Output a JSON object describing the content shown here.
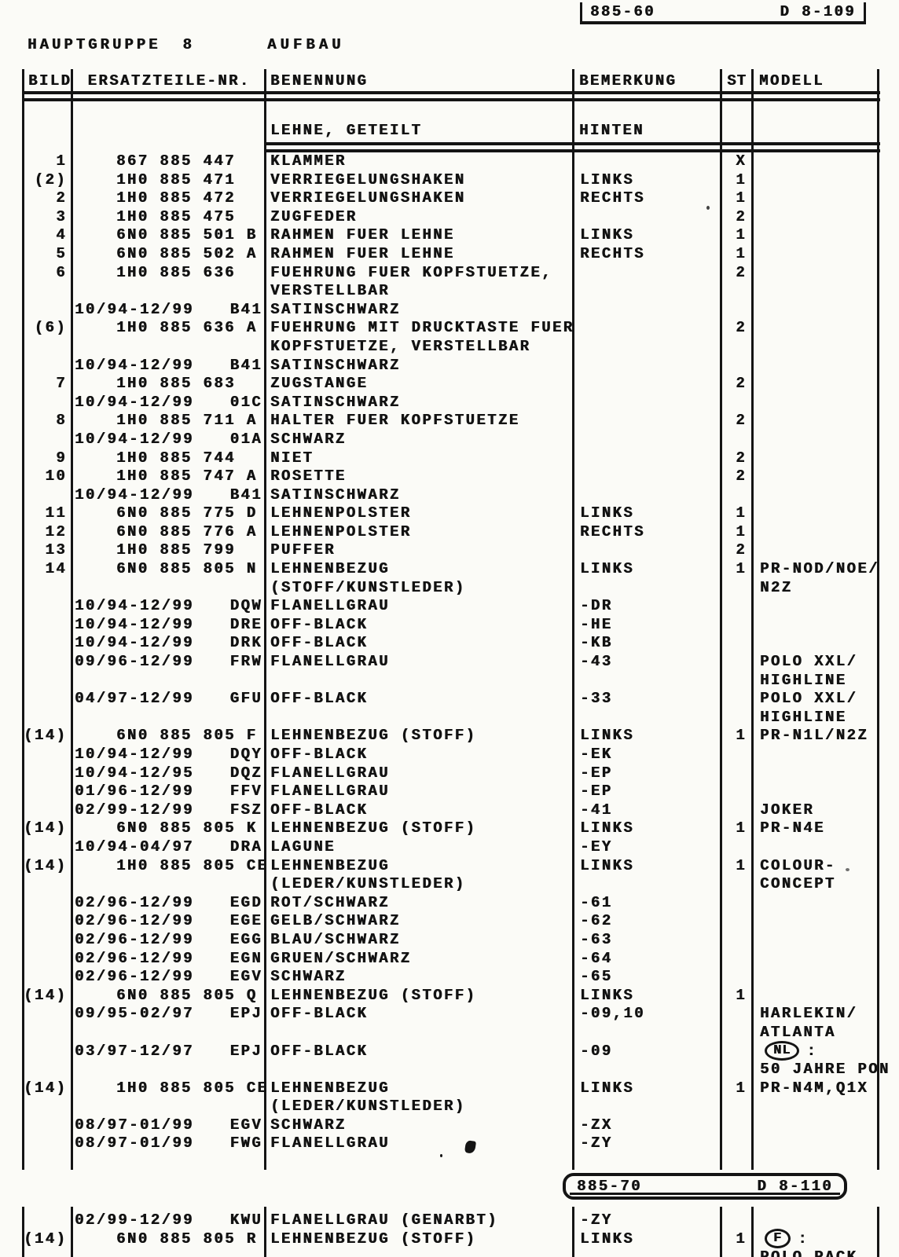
{
  "page": {
    "ref_top": {
      "left": "885-60",
      "right": "D  8-109"
    },
    "ref_bottom": {
      "left": "885-70",
      "right": "D  8-110"
    },
    "title_label": "HAUPTGRUPPE",
    "title_number": "8",
    "title_section": "AUFBAU"
  },
  "table": {
    "headers": {
      "bild": "BILD",
      "nr": "ERSATZTEILE-NR.",
      "ben": "BENENNUNG",
      "bem": "BEMERKUNG",
      "st": "ST",
      "modell": "MODELL"
    },
    "subheader": {
      "ben": "LEHNE, GETEILT",
      "bem": "HINTEN"
    },
    "rows": [
      {
        "bild": "1",
        "nr": "867 885 447",
        "ben": "KLAMMER",
        "st": "X"
      },
      {
        "bild": "(2)",
        "nr": "1H0 885 471",
        "ben": "VERRIEGELUNGSHAKEN",
        "bem": "LINKS",
        "st": "1"
      },
      {
        "bild": "2",
        "nr": "1H0 885 472",
        "ben": "VERRIEGELUNGSHAKEN",
        "bem": "RECHTS",
        "st": "1"
      },
      {
        "bild": "3",
        "nr": "1H0 885 475",
        "ben": "ZUGFEDER",
        "st": "2"
      },
      {
        "bild": "4",
        "nr": "6N0 885 501 B",
        "ben": "RAHMEN FUER LEHNE",
        "bem": "LINKS",
        "st": "1"
      },
      {
        "bild": "5",
        "nr": "6N0 885 502 A",
        "ben": "RAHMEN FUER LEHNE",
        "bem": "RECHTS",
        "st": "1"
      },
      {
        "bild": "6",
        "nr": "1H0 885 636",
        "ben": "FUEHRUNG FUER KOPFSTUETZE,",
        "st": "2"
      },
      {
        "ben": "VERSTELLBAR"
      },
      {
        "nr": "10/94-12/99",
        "code": "B41",
        "ben": "SATINSCHWARZ"
      },
      {
        "bild": "(6)",
        "nr": "1H0 885 636 A",
        "ben": "FUEHRUNG MIT DRUCKTASTE FUER",
        "st": "2"
      },
      {
        "ben": "KOPFSTUETZE, VERSTELLBAR"
      },
      {
        "nr": "10/94-12/99",
        "code": "B41",
        "ben": "SATINSCHWARZ"
      },
      {
        "bild": "7",
        "nr": "1H0 885 683",
        "ben": "ZUGSTANGE",
        "st": "2"
      },
      {
        "nr": "10/94-12/99",
        "code": "01C",
        "ben": "SATINSCHWARZ"
      },
      {
        "bild": "8",
        "nr": "1H0 885 711 A",
        "ben": "HALTER FUER KOPFSTUETZE",
        "st": "2"
      },
      {
        "nr": "10/94-12/99",
        "code": "01A",
        "ben": "SCHWARZ"
      },
      {
        "bild": "9",
        "nr": "1H0 885 744",
        "ben": "NIET",
        "st": "2"
      },
      {
        "bild": "10",
        "nr": "1H0 885 747 A",
        "ben": "ROSETTE",
        "st": "2"
      },
      {
        "nr": "10/94-12/99",
        "code": "B41",
        "ben": "SATINSCHWARZ"
      },
      {
        "bild": "11",
        "nr": "6N0 885 775 D",
        "ben": "LEHNENPOLSTER",
        "bem": "LINKS",
        "st": "1"
      },
      {
        "bild": "12",
        "nr": "6N0 885 776 A",
        "ben": "LEHNENPOLSTER",
        "bem": "RECHTS",
        "st": "1"
      },
      {
        "bild": "13",
        "nr": "1H0 885 799",
        "ben": "PUFFER",
        "st": "2"
      },
      {
        "bild": "14",
        "nr": "6N0 885 805 N",
        "ben": "LEHNENBEZUG",
        "bem": "LINKS",
        "st": "1",
        "modell": "PR-NOD/NOE/"
      },
      {
        "ben": "(STOFF/KUNSTLEDER)",
        "modell": "N2Z"
      },
      {
        "nr": "10/94-12/99",
        "code": "DQW",
        "ben": "FLANELLGRAU",
        "bem": "-DR"
      },
      {
        "nr": "10/94-12/99",
        "code": "DRE",
        "ben": "OFF-BLACK",
        "bem": "-HE"
      },
      {
        "nr": "10/94-12/99",
        "code": "DRK",
        "ben": "OFF-BLACK",
        "bem": "-KB"
      },
      {
        "nr": "09/96-12/99",
        "code": "FRW",
        "ben": "FLANELLGRAU",
        "bem": "-43",
        "modell": "POLO XXL/"
      },
      {
        "modell": "HIGHLINE"
      },
      {
        "nr": "04/97-12/99",
        "code": "GFU",
        "ben": "OFF-BLACK",
        "bem": "-33",
        "modell": "POLO XXL/"
      },
      {
        "modell": "HIGHLINE"
      },
      {
        "bild": "(14)",
        "nr": "6N0 885 805 F",
        "ben": "LEHNENBEZUG (STOFF)",
        "bem": "LINKS",
        "st": "1",
        "modell": "PR-N1L/N2Z"
      },
      {
        "nr": "10/94-12/99",
        "code": "DQY",
        "ben": "OFF-BLACK",
        "bem": "-EK"
      },
      {
        "nr": "10/94-12/95",
        "code": "DQZ",
        "ben": "FLANELLGRAU",
        "bem": "-EP"
      },
      {
        "nr": "01/96-12/99",
        "code": "FFV",
        "ben": "FLANELLGRAU",
        "bem": "-EP"
      },
      {
        "nr": "02/99-12/99",
        "code": "FSZ",
        "ben": "OFF-BLACK",
        "bem": "-41",
        "modell": "JOKER"
      },
      {
        "bild": "(14)",
        "nr": "6N0 885 805 K",
        "ben": "LEHNENBEZUG (STOFF)",
        "bem": "LINKS",
        "st": "1",
        "modell": "PR-N4E"
      },
      {
        "nr": "10/94-04/97",
        "code": "DRA",
        "ben": "LAGUNE",
        "bem": "-EY"
      },
      {
        "bild": "(14)",
        "nr": "1H0 885 805 CE",
        "ben": "LEHNENBEZUG",
        "bem": "LINKS",
        "st": "1",
        "modell": "COLOUR-"
      },
      {
        "ben": "(LEDER/KUNSTLEDER)",
        "modell": "CONCEPT"
      },
      {
        "nr": "02/96-12/99",
        "code": "EGD",
        "ben": "ROT/SCHWARZ",
        "bem": "-61"
      },
      {
        "nr": "02/96-12/99",
        "code": "EGE",
        "ben": "GELB/SCHWARZ",
        "bem": "-62"
      },
      {
        "nr": "02/96-12/99",
        "code": "EGG",
        "ben": "BLAU/SCHWARZ",
        "bem": "-63"
      },
      {
        "nr": "02/96-12/99",
        "code": "EGN",
        "ben": "GRUEN/SCHWARZ",
        "bem": "-64"
      },
      {
        "nr": "02/96-12/99",
        "code": "EGV",
        "ben": "SCHWARZ",
        "bem": "-65"
      },
      {
        "bild": "(14)",
        "nr": "6N0 885 805 Q",
        "ben": "LEHNENBEZUG (STOFF)",
        "bem": "LINKS",
        "st": "1"
      },
      {
        "nr": "09/95-02/97",
        "code": "EPJ",
        "ben": "OFF-BLACK",
        "bem": "-09,10",
        "modell": "HARLEKIN/"
      },
      {
        "modell": "ATLANTA"
      },
      {
        "nr": "03/97-12/97",
        "code": "EPJ",
        "ben": "OFF-BLACK",
        "bem": "-09",
        "oval": "NL",
        "modell": ":"
      },
      {
        "modell": "50 JAHRE PON"
      },
      {
        "bild": "(14)",
        "nr": "1H0 885 805 CE",
        "ben": "LEHNENBEZUG",
        "bem": "LINKS",
        "st": "1",
        "modell": "PR-N4M,Q1X"
      },
      {
        "ben": "(LEDER/KUNSTLEDER)"
      },
      {
        "nr": "08/97-01/99",
        "code": "EGV",
        "ben": "SCHWARZ",
        "bem": "-ZX"
      },
      {
        "nr": "08/97-01/99",
        "code": "FWG",
        "ben": "FLANELLGRAU",
        "bem": "-ZY"
      }
    ],
    "rows2": [
      {
        "nr": "02/99-12/99",
        "code": "KWU",
        "ben": "FLANELLGRAU (GENARBT)",
        "bem": "-ZY"
      },
      {
        "bild": "(14)",
        "nr": "6N0 885 805 R",
        "ben": "LEHNENBEZUG (STOFF)",
        "bem": "LINKS",
        "st": "1",
        "oval": "F",
        "modell": ":"
      },
      {
        "modell": "POLO PACK"
      }
    ]
  }
}
